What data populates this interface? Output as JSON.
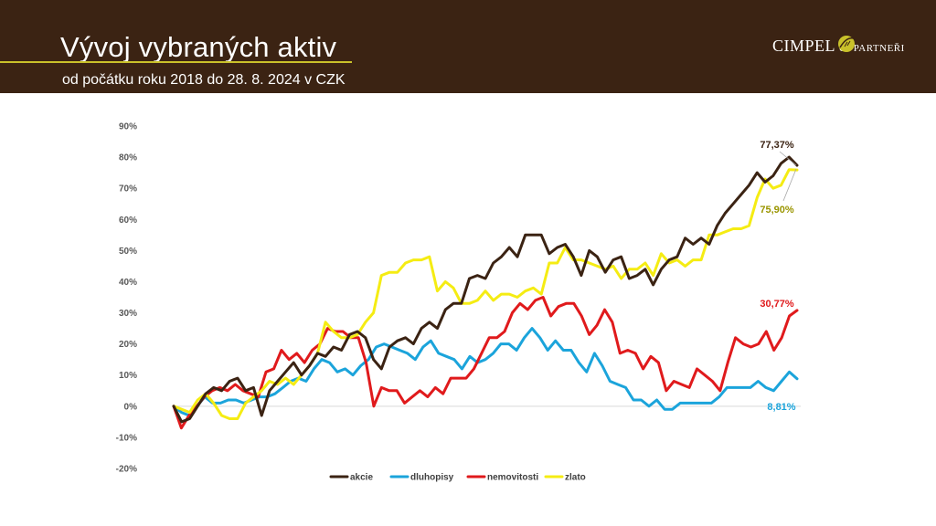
{
  "header": {
    "title": "Vývoj vybraných aktiv",
    "subtitle": "od počátku roku 2018 do 28. 8. 2024 v CZK"
  },
  "logo": {
    "main": "CIMPEL",
    "amp": "&",
    "small": "PARTNEŘI"
  },
  "colors": {
    "header_bg": "#3b2313",
    "accent": "#c9c12a"
  },
  "chart_data": {
    "type": "line",
    "ylim": [
      -20,
      90
    ],
    "yticks": [
      "90%",
      "80%",
      "70%",
      "60%",
      "50%",
      "40%",
      "30%",
      "20%",
      "10%",
      "0%",
      "-10%",
      "-20%"
    ],
    "ytick_values": [
      90,
      80,
      70,
      60,
      50,
      40,
      30,
      20,
      10,
      0,
      -10,
      -20
    ],
    "grid": false,
    "legend_position": "bottom",
    "series": [
      {
        "name": "akcie",
        "color": "#3b2313",
        "end_label": "77,37%",
        "values": [
          0,
          -5,
          -4,
          0,
          4,
          6,
          5,
          8,
          9,
          5,
          6,
          -3,
          5,
          8,
          11,
          14,
          10,
          13,
          17,
          16,
          19,
          18,
          23,
          24,
          22,
          15,
          12,
          19,
          21,
          22,
          20,
          25,
          27,
          25,
          31,
          33,
          33,
          41,
          42,
          41,
          46,
          48,
          51,
          48,
          55,
          55,
          55,
          49,
          51,
          52,
          48,
          42,
          50,
          48,
          43,
          47,
          48,
          41,
          42,
          44,
          39,
          44,
          47,
          48,
          54,
          52,
          54,
          52,
          58,
          62,
          65,
          68,
          71,
          75,
          72,
          74,
          78,
          80,
          77.37
        ]
      },
      {
        "name": "dluhopisy",
        "color": "#1ba4db",
        "values": [
          0,
          -2,
          -3,
          0,
          3,
          1,
          1,
          2,
          2,
          1,
          2,
          3,
          3,
          4,
          6,
          8,
          9,
          8,
          12,
          15,
          14,
          11,
          12,
          10,
          13,
          15,
          19,
          20,
          19,
          18,
          17,
          15,
          19,
          21,
          17,
          16,
          15,
          12,
          16,
          14,
          15,
          17,
          20,
          20,
          18,
          22,
          25,
          22,
          18,
          21,
          18,
          18,
          14,
          11,
          17,
          13,
          8,
          7,
          6,
          2,
          2,
          0,
          2,
          -1,
          -1,
          1,
          1,
          1,
          1,
          1,
          3,
          6,
          6,
          6,
          6,
          8,
          6,
          5,
          8,
          11,
          8.81
        ]
      },
      {
        "name": "nemovitosti",
        "color": "#e01a1c",
        "end_label": "30,77%",
        "values": [
          0,
          -7,
          -3,
          0,
          3,
          5,
          6,
          5,
          7,
          5,
          4,
          3,
          11,
          12,
          18,
          15,
          17,
          14,
          18,
          20,
          25,
          24,
          24,
          22,
          22,
          14,
          0,
          6,
          5,
          5,
          1,
          3,
          5,
          3,
          6,
          4,
          9,
          9,
          9,
          12,
          17,
          22,
          22,
          24,
          30,
          33,
          31,
          34,
          35,
          29,
          32,
          33,
          33,
          29,
          23,
          26,
          31,
          27,
          17,
          18,
          17,
          12,
          16,
          14,
          5,
          8,
          7,
          6,
          12,
          10,
          8,
          5,
          14,
          22,
          20,
          19,
          20,
          24,
          18,
          22,
          29,
          30.77
        ]
      },
      {
        "name": "zlato",
        "color": "#f5ec13",
        "end_label": "75,90%",
        "values": [
          0,
          -1,
          -2,
          2,
          4,
          1,
          -3,
          -4,
          -4,
          1,
          3,
          5,
          8,
          7,
          9,
          7,
          10,
          13,
          17,
          27,
          24,
          22,
          22,
          23,
          27,
          30,
          42,
          43,
          43,
          46,
          47,
          47,
          48,
          37,
          40,
          38,
          33,
          33,
          34,
          37,
          34,
          36,
          36,
          35,
          37,
          38,
          36,
          46,
          46,
          51,
          47,
          47,
          46,
          45,
          44,
          45,
          41,
          44,
          44,
          46,
          42,
          49,
          46,
          47,
          45,
          47,
          47,
          55,
          55,
          56,
          57,
          57,
          58,
          67,
          73,
          70,
          71,
          76,
          75.9
        ]
      }
    ]
  }
}
